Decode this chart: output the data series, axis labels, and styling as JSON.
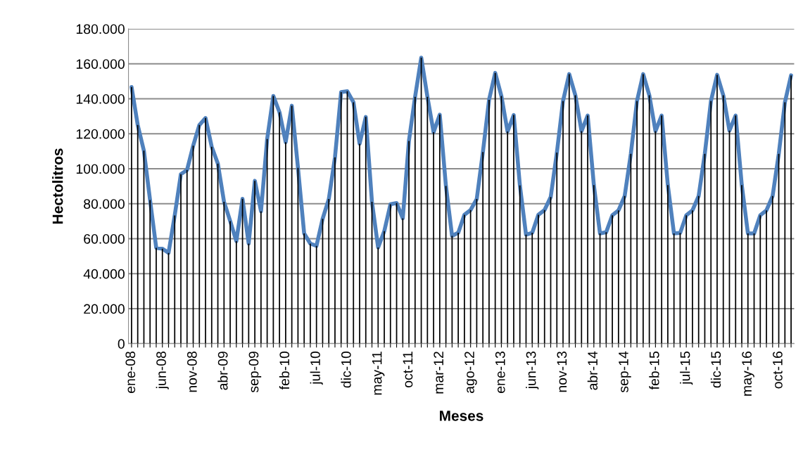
{
  "chart_data": {
    "type": "line",
    "xlabel": "Meses",
    "ylabel": "Hectolitros",
    "categories": [
      "ene-08",
      null,
      null,
      null,
      null,
      "jun-08",
      null,
      null,
      null,
      null,
      "nov-08",
      null,
      null,
      null,
      null,
      "abr-09",
      null,
      null,
      null,
      null,
      "sep-09",
      null,
      null,
      null,
      null,
      "feb-10",
      null,
      null,
      null,
      null,
      "jul-10",
      null,
      null,
      null,
      null,
      "dic-10",
      null,
      null,
      null,
      null,
      "may-11",
      null,
      null,
      null,
      null,
      "oct-11",
      null,
      null,
      null,
      null,
      "mar-12",
      null,
      null,
      null,
      null,
      "ago-12",
      null,
      null,
      null,
      null,
      "ene-13",
      null,
      null,
      null,
      null,
      "jun-13",
      null,
      null,
      null,
      null,
      "nov-13",
      null,
      null,
      null,
      null,
      "abr-14",
      null,
      null,
      null,
      null,
      "sep-14",
      null,
      null,
      null,
      null,
      "feb-15",
      null,
      null,
      null,
      null,
      "jul-15",
      null,
      null,
      null,
      null,
      "dic-15",
      null,
      null,
      null,
      null,
      "may-16",
      null,
      null,
      null,
      null,
      "oct-16",
      null,
      null
    ],
    "series": [
      {
        "type": "bar",
        "color": "#000000",
        "values": [
          146700,
          125000,
          110300,
          82100,
          54800,
          54300,
          51900,
          73300,
          96900,
          99300,
          113200,
          125000,
          129000,
          112600,
          102900,
          81100,
          70100,
          58600,
          82800,
          57200,
          93100,
          75700,
          117000,
          141600,
          132300,
          115200,
          136000,
          100500,
          63000,
          57200,
          55900,
          71400,
          82700,
          106500,
          143800,
          144300,
          138000,
          114300,
          129600,
          81100,
          55000,
          64300,
          79700,
          80400,
          71700,
          115900,
          141100,
          163500,
          141100,
          120900,
          130900,
          90200,
          61600,
          63400,
          73700,
          76400,
          82700,
          109500,
          139400,
          154800,
          141600,
          121300,
          130700,
          90500,
          62300,
          63400,
          73700,
          76400,
          83800,
          109200,
          138700,
          154100,
          142000,
          121500,
          130400,
          90700,
          63000,
          63700,
          73400,
          76200,
          84400,
          108500,
          138700,
          154100,
          142000,
          121500,
          130400,
          90700,
          63000,
          63300,
          73400,
          76200,
          84400,
          108500,
          138700,
          153700,
          142000,
          121800,
          130400,
          90700,
          63000,
          63000,
          73400,
          76200,
          84400,
          108500,
          138000,
          153400
        ]
      },
      {
        "color": "#4f81bd",
        "values": [
          146700,
          125000,
          110300,
          82100,
          54800,
          54300,
          51900,
          73300,
          96900,
          99300,
          113200,
          125000,
          129000,
          112600,
          102900,
          81100,
          70100,
          58600,
          82800,
          57200,
          93100,
          75700,
          117000,
          141600,
          132300,
          115200,
          136000,
          100500,
          63000,
          57200,
          55900,
          71400,
          82700,
          106500,
          143800,
          144300,
          138000,
          114300,
          129600,
          81100,
          55000,
          64300,
          79700,
          80400,
          71700,
          115900,
          141100,
          163500,
          141100,
          120900,
          130900,
          90200,
          61600,
          63400,
          73700,
          76400,
          82700,
          109500,
          139400,
          154800,
          141600,
          121300,
          130700,
          90500,
          62300,
          63400,
          73700,
          76400,
          83800,
          109200,
          138700,
          154100,
          142000,
          121500,
          130400,
          90700,
          63000,
          63700,
          73400,
          76200,
          84400,
          108500,
          138700,
          154100,
          142000,
          121500,
          130400,
          90700,
          63000,
          63300,
          73400,
          76200,
          84400,
          108500,
          138700,
          153700,
          142000,
          121800,
          130400,
          90700,
          63000,
          63000,
          73400,
          76200,
          84400,
          108500,
          138000,
          153400
        ]
      }
    ],
    "ylim": [
      0,
      180000
    ],
    "yticks": [
      {
        "value": 0,
        "label": "0"
      },
      {
        "value": 20000,
        "label": "20.000"
      },
      {
        "value": 40000,
        "label": "40.000"
      },
      {
        "value": 60000,
        "label": "60.000"
      },
      {
        "value": 80000,
        "label": "80.000"
      },
      {
        "value": 100000,
        "label": "100.000"
      },
      {
        "value": 120000,
        "label": "120.000"
      },
      {
        "value": 140000,
        "label": "140.000"
      },
      {
        "value": 160000,
        "label": "160.000"
      },
      {
        "value": 180000,
        "label": "180.000"
      }
    ],
    "grid": "y",
    "marker": "none",
    "line_style": "solid"
  }
}
